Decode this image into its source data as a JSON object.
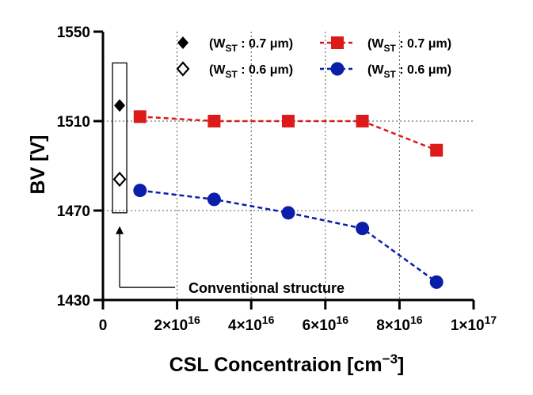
{
  "chart_data": {
    "type": "scatter",
    "xlabel": "CSL Concentraion [cm",
    "xlabel_sup": "−3",
    "xlabel_end": "]",
    "ylabel": "BV [V]",
    "xlim": [
      0,
      1e+17
    ],
    "ylim": [
      1430,
      1550
    ],
    "x_ticks": [
      {
        "v": 0,
        "base": "0",
        "exp": ""
      },
      {
        "v": 2e+16,
        "base": "2×10",
        "exp": "16"
      },
      {
        "v": 4e+16,
        "base": "4×10",
        "exp": "16"
      },
      {
        "v": 6e+16,
        "base": "6×10",
        "exp": "16"
      },
      {
        "v": 8e+16,
        "base": "8×10",
        "exp": "16"
      },
      {
        "v": 1e+17,
        "base": "1×10",
        "exp": "17"
      }
    ],
    "y_ticks": [
      1430,
      1470,
      1510,
      1550
    ],
    "grid": true,
    "legend_placement": "top",
    "series": [
      {
        "name_pre": "(W",
        "name_sub": "ST",
        "name_post": " : 0.7 μm)",
        "marker": "diamond-filled",
        "color": "#000000",
        "line": false,
        "points": [
          [
            4500000000000000.0,
            1517
          ]
        ]
      },
      {
        "name_pre": "(W",
        "name_sub": "ST",
        "name_post": " : 0.6 μm)",
        "marker": "diamond-open",
        "color": "#000000",
        "line": false,
        "points": [
          [
            4500000000000000.0,
            1484
          ]
        ]
      },
      {
        "name_pre": "(W",
        "name_sub": "ST",
        "name_post": " : 0.7 μm)",
        "marker": "square",
        "color": "#dd1a1a",
        "line": true,
        "points": [
          [
            1e+16,
            1512
          ],
          [
            3e+16,
            1510
          ],
          [
            5e+16,
            1510
          ],
          [
            7e+16,
            1510
          ],
          [
            9e+16,
            1497
          ]
        ]
      },
      {
        "name_pre": "(W",
        "name_sub": "ST",
        "name_post": " : 0.6 μm)",
        "marker": "circle",
        "color": "#0b1eaa",
        "line": true,
        "points": [
          [
            1e+16,
            1479
          ],
          [
            3e+16,
            1475
          ],
          [
            5e+16,
            1469
          ],
          [
            7e+16,
            1462
          ],
          [
            9e+16,
            1438
          ]
        ]
      }
    ],
    "annotation": "Conventional structure"
  }
}
